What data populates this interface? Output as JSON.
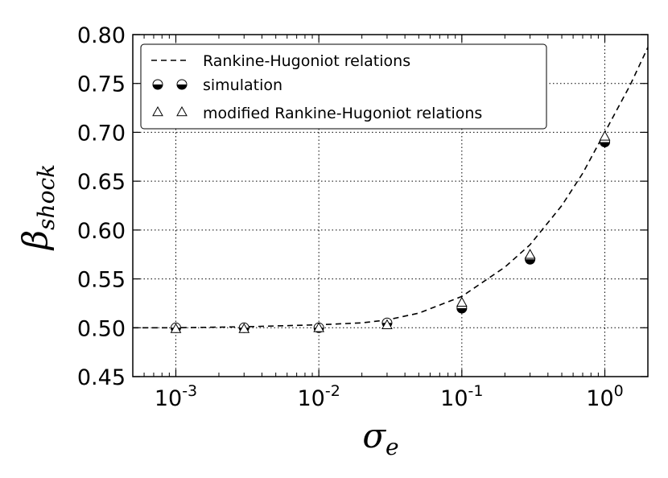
{
  "chart_data": {
    "type": "scatter",
    "xscale": "log",
    "xlim": [
      0.0005,
      2.0
    ],
    "ylim": [
      0.45,
      0.8
    ],
    "grid": true,
    "legend_position": "top-left",
    "xlabel": "σ",
    "xlabel_sub": "e",
    "ylabel": "β",
    "ylabel_sub": "shock",
    "yticks": [
      "0.45",
      "0.50",
      "0.55",
      "0.60",
      "0.65",
      "0.70",
      "0.75",
      "0.80"
    ],
    "xticks": [
      {
        "value": 0.001,
        "base": "10",
        "exp": "-3"
      },
      {
        "value": 0.01,
        "base": "10",
        "exp": "-2"
      },
      {
        "value": 0.1,
        "base": "10",
        "exp": "-1"
      },
      {
        "value": 1,
        "base": "10",
        "exp": "0"
      }
    ],
    "series": [
      {
        "name": "Rankine-Hugoniot relations",
        "style": "dashed-line",
        "color": "#000000",
        "x": [
          0.0005,
          0.001,
          0.003,
          0.01,
          0.02,
          0.03,
          0.05,
          0.1,
          0.2,
          0.3,
          0.5,
          0.7,
          1.0,
          1.5,
          2.0
        ],
        "y": [
          0.5,
          0.5,
          0.501,
          0.503,
          0.505,
          0.508,
          0.515,
          0.532,
          0.562,
          0.585,
          0.625,
          0.658,
          0.7,
          0.748,
          0.787
        ]
      },
      {
        "name": "simulation",
        "style": "half-filled-circle",
        "color": "#000000",
        "x": [
          0.001,
          0.003,
          0.01,
          0.03,
          0.1,
          0.3,
          1.0
        ],
        "y": [
          0.5,
          0.5,
          0.5,
          0.505,
          0.52,
          0.57,
          0.69
        ]
      },
      {
        "name": "modified Rankine-Hugoniot relations",
        "style": "open-triangle",
        "color": "#000000",
        "x": [
          0.001,
          0.003,
          0.01,
          0.03,
          0.1,
          0.3,
          1.0
        ],
        "y": [
          0.499,
          0.499,
          0.5,
          0.503,
          0.526,
          0.575,
          0.696
        ]
      }
    ]
  }
}
